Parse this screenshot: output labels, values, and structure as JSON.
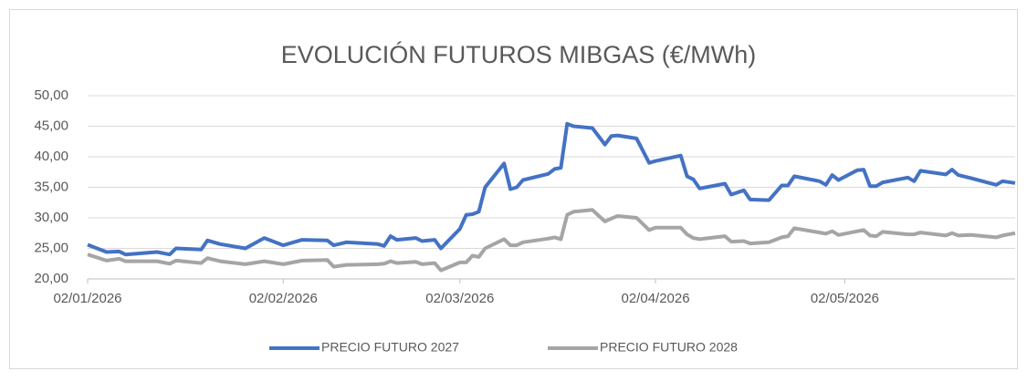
{
  "chart_data": {
    "type": "line",
    "title": "EVOLUCIÓN FUTUROS  MIBGAS (€/MWh)",
    "x": [
      "02/01/2026",
      "05/01/2026",
      "07/01/2026",
      "08/01/2026",
      "13/01/2026",
      "15/01/2026",
      "16/01/2026",
      "20/01/2026",
      "21/01/2026",
      "23/01/2026",
      "27/01/2026",
      "30/01/2026",
      "02/02/2026",
      "05/02/2026",
      "09/02/2026",
      "10/02/2026",
      "12/02/2026",
      "17/02/2026",
      "18/02/2026",
      "19/02/2026",
      "20/02/2026",
      "23/02/2026",
      "24/02/2026",
      "26/02/2026",
      "27/02/2026",
      "02/03/2026",
      "03/03/2026",
      "04/03/2026",
      "05/03/2026",
      "06/03/2026",
      "09/03/2026",
      "10/03/2026",
      "11/03/2026",
      "12/03/2026",
      "16/03/2026",
      "17/03/2026",
      "18/03/2026",
      "19/03/2026",
      "20/03/2026",
      "23/03/2026",
      "25/03/2026",
      "26/03/2026",
      "27/03/2026",
      "30/03/2026",
      "01/04/2026",
      "02/04/2026",
      "06/04/2026",
      "07/04/2026",
      "08/04/2026",
      "09/04/2026",
      "13/04/2026",
      "14/04/2026",
      "16/04/2026",
      "17/04/2026",
      "20/04/2026",
      "22/04/2026",
      "23/04/2026",
      "24/04/2026",
      "28/04/2026",
      "29/04/2026",
      "30/04/2026",
      "01/05/2026",
      "04/05/2026",
      "05/05/2026",
      "06/05/2026",
      "07/05/2026",
      "08/05/2026",
      "12/05/2026",
      "13/05/2026",
      "14/05/2026",
      "18/05/2026",
      "19/05/2026",
      "20/05/2026",
      "22/05/2026",
      "26/05/2026",
      "27/05/2026",
      "29/05/2026"
    ],
    "series": [
      {
        "name": "PRECIO FUTURO 2027",
        "color": "#4472c4",
        "values": [
          25.6,
          24.4,
          24.5,
          24.0,
          24.4,
          24.0,
          25.0,
          24.8,
          26.3,
          25.7,
          25.0,
          26.7,
          25.5,
          26.4,
          26.3,
          25.5,
          26.0,
          25.7,
          25.4,
          27.0,
          26.4,
          26.7,
          26.2,
          26.4,
          25.0,
          28.2,
          30.5,
          30.6,
          31.0,
          35.0,
          38.9,
          34.7,
          35.0,
          36.2,
          37.2,
          38.0,
          38.2,
          45.4,
          45.0,
          44.7,
          42.0,
          43.4,
          43.5,
          43.0,
          39.0,
          39.3,
          40.2,
          36.8,
          36.3,
          34.8,
          35.6,
          33.8,
          34.5,
          33.0,
          32.9,
          35.3,
          35.3,
          36.8,
          36.0,
          35.4,
          37.0,
          36.2,
          37.8,
          37.9,
          35.2,
          35.2,
          35.8,
          36.6,
          36.0,
          37.7,
          37.1,
          37.9,
          37.0,
          36.5,
          35.4,
          36.0,
          35.7
        ]
      },
      {
        "name": "PRECIO FUTURO 2028",
        "color": "#a5a5a5",
        "values": [
          24.0,
          23.0,
          23.3,
          22.9,
          22.9,
          22.5,
          23.0,
          22.6,
          23.4,
          22.9,
          22.4,
          22.9,
          22.4,
          23.0,
          23.1,
          22.0,
          22.3,
          22.4,
          22.5,
          22.9,
          22.6,
          22.8,
          22.4,
          22.6,
          21.4,
          22.7,
          22.7,
          23.8,
          23.6,
          25.0,
          26.5,
          25.5,
          25.5,
          26.0,
          26.6,
          26.8,
          26.5,
          30.5,
          31.0,
          31.3,
          29.4,
          29.9,
          30.3,
          30.0,
          28.0,
          28.4,
          28.4,
          27.3,
          26.7,
          26.5,
          27.0,
          26.1,
          26.2,
          25.8,
          26.0,
          26.8,
          27.0,
          28.3,
          27.6,
          27.4,
          27.8,
          27.2,
          27.8,
          28.0,
          27.1,
          27.0,
          27.7,
          27.3,
          27.3,
          27.6,
          27.1,
          27.5,
          27.1,
          27.2,
          26.8,
          27.1,
          27.5
        ]
      }
    ],
    "xlim": [
      "02/01/2026",
      "29/05/2026"
    ],
    "xticks": [
      "02/01/2026",
      "02/02/2026",
      "02/03/2026",
      "02/04/2026",
      "02/05/2026"
    ],
    "ylim": [
      20,
      50
    ],
    "yticks": [
      {
        "value": 20,
        "label": "20,00"
      },
      {
        "value": 25,
        "label": "25,00"
      },
      {
        "value": 30,
        "label": "30,00"
      },
      {
        "value": 35,
        "label": "35,00"
      },
      {
        "value": 40,
        "label": "40,00"
      },
      {
        "value": 45,
        "label": "45,00"
      },
      {
        "value": 50,
        "label": "50,00"
      }
    ],
    "grid": true,
    "legend": "bottom"
  }
}
